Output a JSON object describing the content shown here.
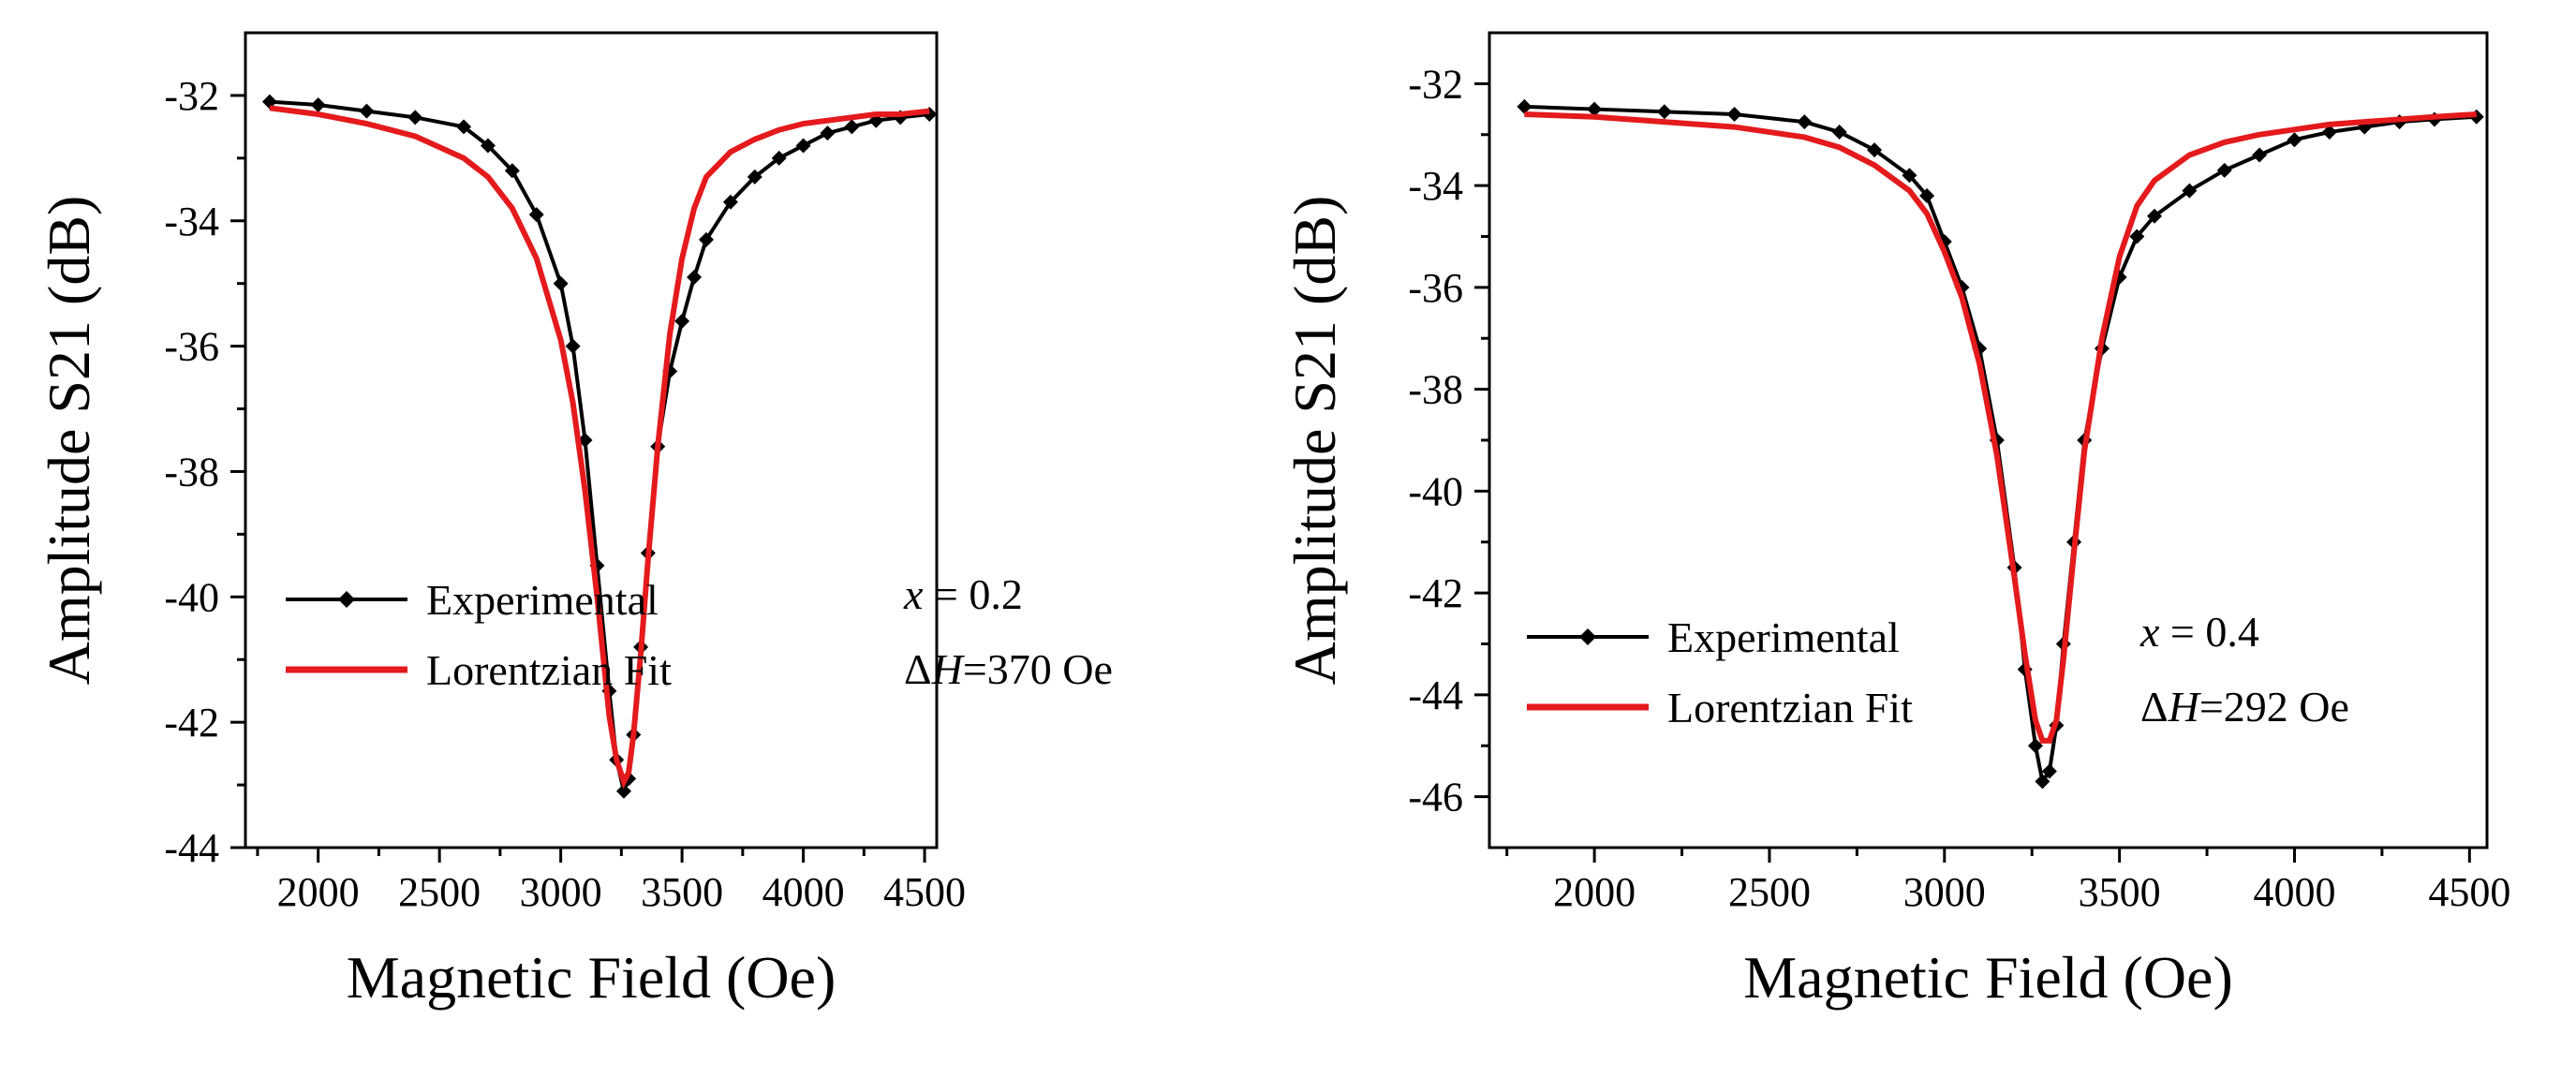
{
  "chart_data": [
    {
      "type": "line",
      "xlabel": "Magnetic Field (Oe)",
      "ylabel": "Amplitude S21 (dB)",
      "xlim": [
        1700,
        4550
      ],
      "ylim": [
        -44,
        -31
      ],
      "xticks": [
        2000,
        2500,
        3000,
        3500,
        4000,
        4500
      ],
      "yticks": [
        -32,
        -34,
        -36,
        -38,
        -40,
        -42,
        -44
      ],
      "x": [
        1800,
        2000,
        2200,
        2400,
        2600,
        2700,
        2800,
        2900,
        3000,
        3050,
        3100,
        3150,
        3200,
        3230,
        3260,
        3280,
        3300,
        3330,
        3360,
        3400,
        3450,
        3500,
        3550,
        3600,
        3700,
        3800,
        3900,
        4000,
        4100,
        4200,
        4300,
        4400,
        4520
      ],
      "series": [
        {
          "name": "Experimental",
          "color": "#000000",
          "values": [
            -32.1,
            -32.15,
            -32.25,
            -32.35,
            -32.5,
            -32.8,
            -33.2,
            -33.9,
            -35.0,
            -36.0,
            -37.5,
            -39.5,
            -41.5,
            -42.6,
            -43.1,
            -42.9,
            -42.2,
            -40.8,
            -39.3,
            -37.6,
            -36.4,
            -35.6,
            -34.9,
            -34.3,
            -33.7,
            -33.3,
            -33.0,
            -32.8,
            -32.6,
            -32.5,
            -32.4,
            -32.35,
            -32.3
          ]
        },
        {
          "name": "Lorentzian Fit",
          "color": "#e41a1c",
          "values": [
            -32.2,
            -32.3,
            -32.45,
            -32.65,
            -33.0,
            -33.3,
            -33.8,
            -34.6,
            -35.9,
            -36.9,
            -38.3,
            -40.0,
            -41.9,
            -42.6,
            -42.95,
            -42.8,
            -42.2,
            -40.9,
            -39.4,
            -37.6,
            -35.8,
            -34.6,
            -33.8,
            -33.3,
            -32.9,
            -32.7,
            -32.55,
            -32.45,
            -32.4,
            -32.35,
            -32.3,
            -32.3,
            -32.25
          ]
        }
      ],
      "legend": {
        "placement": "lower-left"
      },
      "annotations": [
        {
          "var": "x",
          "rest": " = 0.2"
        },
        {
          "var": "H",
          "prefix": "Δ",
          "rest": "=370 Oe"
        }
      ]
    },
    {
      "type": "line",
      "xlabel": "Magnetic Field (Oe)",
      "ylabel": "Amplitude S21 (dB)",
      "xlim": [
        1700,
        4550
      ],
      "ylim": [
        -47,
        -31
      ],
      "xticks": [
        2000,
        2500,
        3000,
        3500,
        4000,
        4500
      ],
      "yticks": [
        -32,
        -34,
        -36,
        -38,
        -40,
        -42,
        -44,
        -46
      ],
      "x": [
        1800,
        2000,
        2200,
        2400,
        2600,
        2700,
        2800,
        2900,
        2950,
        3000,
        3050,
        3100,
        3150,
        3200,
        3230,
        3260,
        3280,
        3300,
        3320,
        3340,
        3370,
        3400,
        3450,
        3500,
        3550,
        3600,
        3700,
        3800,
        3900,
        4000,
        4100,
        4200,
        4300,
        4400,
        4520
      ],
      "series": [
        {
          "name": "Experimental",
          "color": "#000000",
          "values": [
            -32.45,
            -32.5,
            -32.55,
            -32.6,
            -32.75,
            -32.95,
            -33.3,
            -33.8,
            -34.2,
            -35.1,
            -36.0,
            -37.2,
            -39.0,
            -41.5,
            -43.5,
            -45.0,
            -45.7,
            -45.5,
            -44.6,
            -43.0,
            -41.0,
            -39.0,
            -37.2,
            -35.8,
            -35.0,
            -34.6,
            -34.1,
            -33.7,
            -33.4,
            -33.1,
            -32.95,
            -32.85,
            -32.75,
            -32.7,
            -32.65
          ]
        },
        {
          "name": "Lorentzian Fit",
          "color": "#e41a1c",
          "values": [
            -32.6,
            -32.65,
            -32.75,
            -32.85,
            -33.05,
            -33.25,
            -33.6,
            -34.1,
            -34.55,
            -35.3,
            -36.2,
            -37.5,
            -39.3,
            -41.7,
            -43.2,
            -44.5,
            -44.9,
            -44.9,
            -44.5,
            -43.3,
            -41.2,
            -39.2,
            -37.0,
            -35.4,
            -34.4,
            -33.9,
            -33.4,
            -33.15,
            -33.0,
            -32.9,
            -32.8,
            -32.75,
            -32.7,
            -32.65,
            -32.6
          ]
        }
      ],
      "legend": {
        "placement": "lower-left"
      },
      "annotations": [
        {
          "var": "x",
          "rest": " = 0.4"
        },
        {
          "var": "H",
          "prefix": "Δ",
          "rest": "=292 Oe"
        }
      ]
    }
  ]
}
